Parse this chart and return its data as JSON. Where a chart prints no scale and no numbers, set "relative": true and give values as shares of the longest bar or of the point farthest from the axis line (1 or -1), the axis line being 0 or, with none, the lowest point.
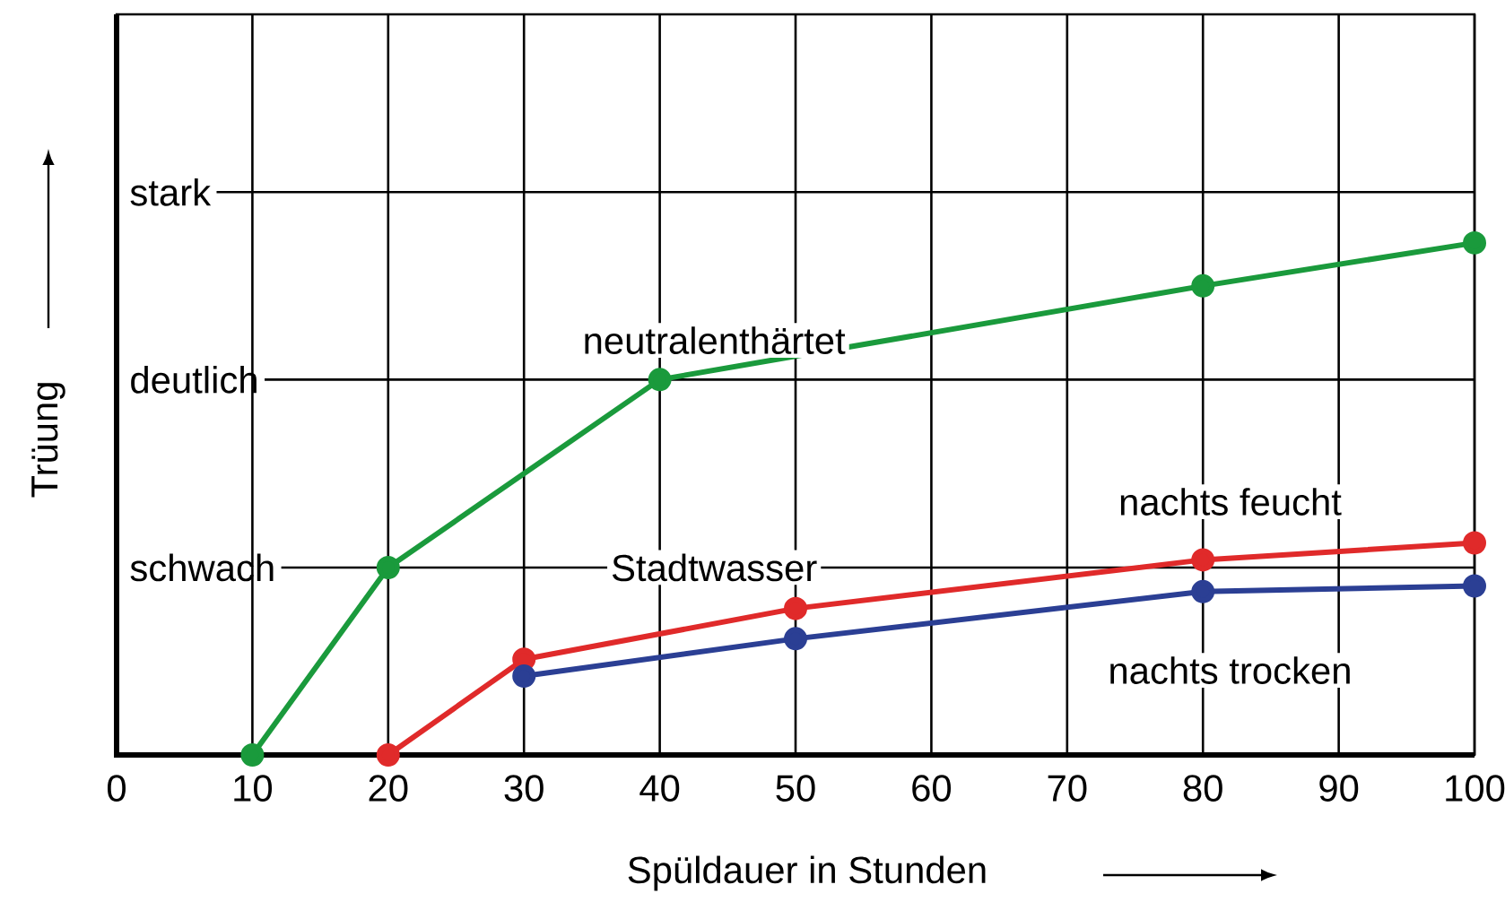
{
  "chart_data": {
    "type": "line",
    "xlabel": "Spüldauer in Stunden",
    "ylabel": "Trüung",
    "xlim": [
      0,
      100
    ],
    "xticks": [
      0,
      10,
      20,
      30,
      40,
      50,
      60,
      70,
      80,
      90,
      100
    ],
    "relative": true,
    "grid": "x",
    "marker": "circle",
    "line_style": "solid",
    "ref_lines": [
      {
        "axis": "y",
        "value": 0.366,
        "label": "schwach"
      },
      {
        "axis": "y",
        "value": 0.733,
        "label": "deutlich"
      },
      {
        "axis": "y",
        "value": 1.099,
        "label": "stark"
      }
    ],
    "annotations": [
      "Stadtwasser"
    ],
    "series": [
      {
        "name": "neutralenthärtet",
        "color": "#1a9a3c",
        "x": [
          10,
          20,
          40,
          80,
          100
        ],
        "values": [
          0,
          0.366,
          0.733,
          0.916,
          1
        ]
      },
      {
        "name": "nachts feucht",
        "color": "#e02a2a",
        "x": [
          20,
          30,
          50,
          80,
          100
        ],
        "values": [
          0,
          0.187,
          0.286,
          0.381,
          0.414
        ]
      },
      {
        "name": "nachts trocken",
        "color": "#2b3f94",
        "x": [
          30,
          50,
          80,
          100
        ],
        "values": [
          0.154,
          0.227,
          0.319,
          0.33
        ]
      }
    ]
  }
}
